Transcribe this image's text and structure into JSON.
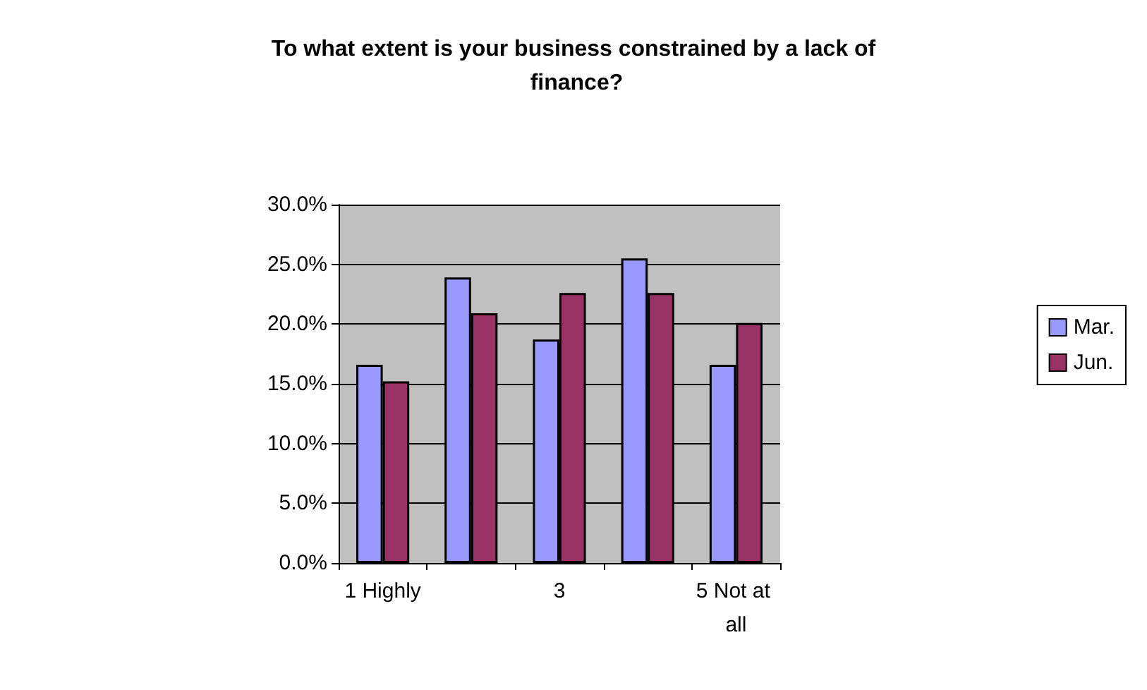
{
  "chart_data": {
    "type": "bar",
    "title": "To what extent is your business constrained by a lack of finance?",
    "categories": [
      "1 Highly",
      null,
      "3",
      null,
      "5 Not at all"
    ],
    "series": [
      {
        "name": "Mar.",
        "color": "#9999ff",
        "values": [
          16.6,
          23.9,
          18.7,
          25.5,
          16.6
        ]
      },
      {
        "name": "Jun.",
        "color": "#993366",
        "values": [
          15.2,
          20.9,
          22.6,
          22.6,
          20.1
        ]
      }
    ],
    "ylim": [
      0,
      30
    ],
    "yticks": [
      {
        "value": 0,
        "label": "0.0%"
      },
      {
        "value": 5,
        "label": "5.0%"
      },
      {
        "value": 10,
        "label": "10.0%"
      },
      {
        "value": 15,
        "label": "15.0%"
      },
      {
        "value": 20,
        "label": "20.0%"
      },
      {
        "value": 25,
        "label": "25.0%"
      },
      {
        "value": 30,
        "label": "30.0%"
      }
    ],
    "grid": "y",
    "legend": "right"
  }
}
